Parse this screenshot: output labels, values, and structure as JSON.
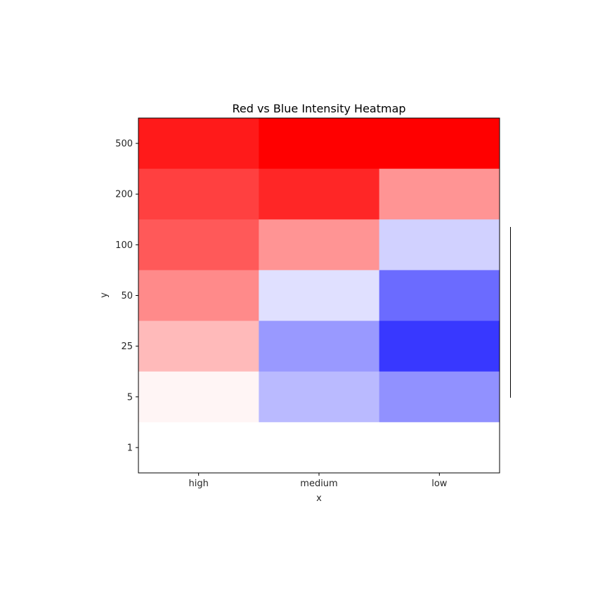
{
  "chart_data": {
    "type": "heatmap",
    "title": "Red vs Blue Intensity Heatmap",
    "xlabel": "x",
    "ylabel": "y",
    "x_categories": [
      "high",
      "medium",
      "low"
    ],
    "y_categories": [
      "500",
      "200",
      "100",
      "50",
      "25",
      "5",
      "1"
    ],
    "colormap": "bwr",
    "vlim": [
      -1,
      1
    ],
    "values": [
      [
        0.9,
        1.0,
        1.0
      ],
      [
        0.75,
        0.85,
        0.42
      ],
      [
        0.65,
        0.42,
        -0.18
      ],
      [
        0.46,
        -0.12,
        -0.58
      ],
      [
        0.27,
        -0.4,
        -0.78
      ],
      [
        0.04,
        -0.27,
        -0.43
      ],
      [
        0.0,
        0.0,
        0.0
      ]
    ],
    "colorbar": "right"
  }
}
